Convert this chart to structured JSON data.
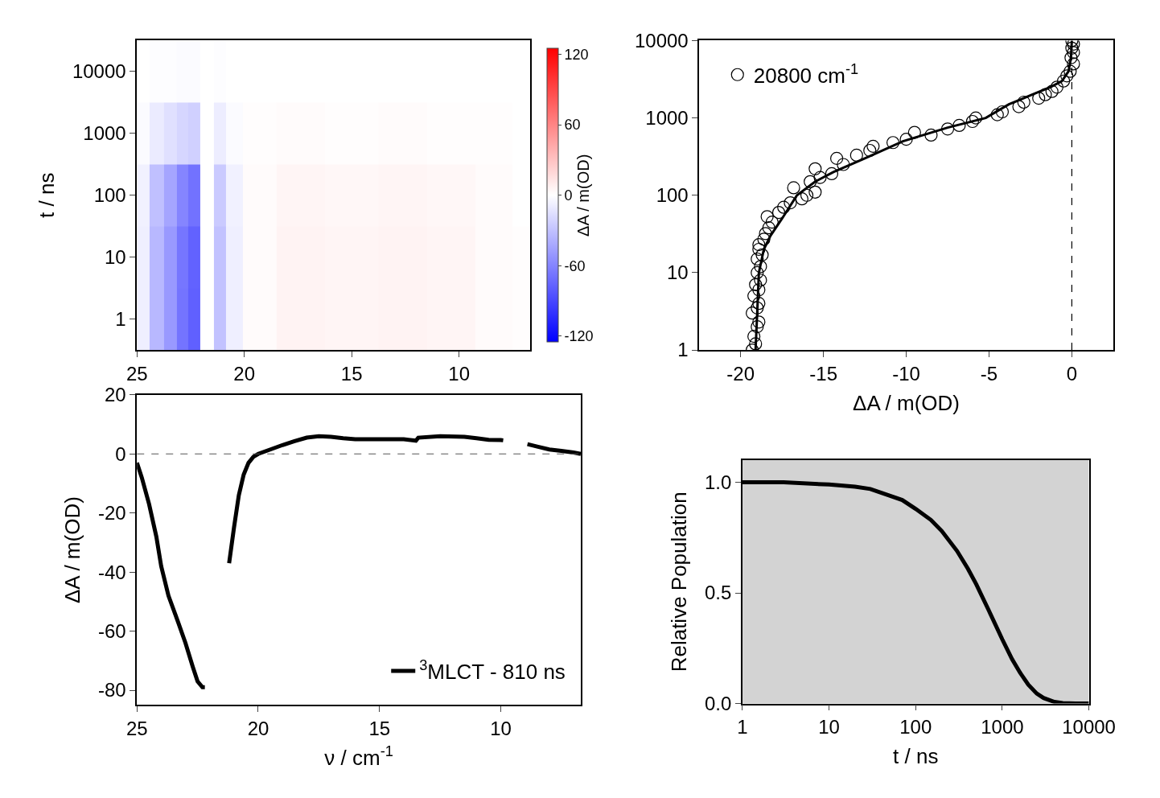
{
  "chart_data": [
    {
      "type": "heatmap",
      "ylabel": "t / ns",
      "clabel": "ΔA / m(OD)",
      "x": [
        24.8,
        24.0,
        23.5,
        22.8,
        22.4,
        21.7,
        21.1,
        20.6,
        19.5,
        17.5,
        15,
        12.5,
        10.5,
        8,
        7
      ],
      "y_categories": [
        "10000",
        "1000",
        "100",
        "10",
        "1"
      ],
      "cells": [
        [
          0,
          -1,
          -1,
          -2,
          -2,
          null,
          -1,
          0,
          0,
          0,
          0,
          0,
          0,
          0,
          0
        ],
        [
          -2,
          -10,
          -15,
          -20,
          -23,
          null,
          -9,
          -2,
          1,
          2,
          1,
          2,
          1,
          1,
          0
        ],
        [
          -7,
          -31,
          -44,
          -60,
          -69,
          null,
          -26,
          -7,
          2,
          5,
          4,
          5,
          4,
          2,
          0
        ],
        [
          -8,
          -35,
          -50,
          -67,
          -77,
          null,
          -30,
          -8,
          2,
          6,
          5,
          6,
          5,
          2,
          1
        ],
        [
          -8,
          -35,
          -50,
          -68,
          -78,
          null,
          -30,
          -8,
          2,
          6,
          5,
          6,
          5,
          2,
          1
        ]
      ],
      "colors": [
        "#0000ff",
        "#ffffff",
        "#ff0000"
      ],
      "xlim": [
        25,
        6.7
      ],
      "xticks": [
        25,
        20,
        15,
        10
      ],
      "clim": [
        -125,
        125
      ],
      "cticks": [
        -120,
        -60,
        0,
        60,
        120
      ]
    },
    {
      "type": "scatter",
      "xlabel": "ΔA / m(OD)",
      "log": "y",
      "legend": "top left",
      "series": [
        {
          "name": "20800 cm$^{-1}$",
          "color": "#000000",
          "marker": "circle",
          "x": [
            -19.3,
            -19.1,
            -19.2,
            -19.0,
            -18.9,
            -19.3,
            -19.0,
            -18.9,
            -19.2,
            -18.9,
            -19.1,
            -18.8,
            -19.0,
            -18.8,
            -19.0,
            -18.7,
            -18.9,
            -18.9,
            -18.6,
            -18.5,
            -18.3,
            -18.1,
            -18.4,
            -17.7,
            -17.4,
            -17.0,
            -16.3,
            -16.0,
            -15.5,
            -16.8,
            -15.8,
            -15.2,
            -14.5,
            -15.5,
            -13.8,
            -14.2,
            -13.0,
            -12.2,
            -12.0,
            -10.8,
            -10.0,
            -8.5,
            -9.5,
            -7.5,
            -6.8,
            -6.0,
            -5.8,
            -4.5,
            -4.2,
            -3.2,
            -2.9,
            -2.0,
            -1.6,
            -1.2,
            -0.9,
            -0.5,
            -0.3,
            -0.1,
            0.1,
            -0.05,
            0.1,
            0,
            0.1,
            0
          ],
          "values": [
            1,
            1.2,
            1.5,
            2,
            2.3,
            3,
            3.5,
            4,
            5,
            6,
            7,
            8,
            10,
            12,
            15,
            17,
            20,
            23,
            27,
            32,
            38,
            45,
            53,
            60,
            70,
            80,
            90,
            100,
            110,
            125,
            150,
            170,
            190,
            220,
            250,
            300,
            330,
            380,
            430,
            480,
            530,
            600,
            650,
            720,
            800,
            900,
            1000,
            1100,
            1200,
            1400,
            1600,
            1800,
            2000,
            2200,
            2500,
            3000,
            3500,
            4000,
            5000,
            6000,
            7000,
            8000,
            9000,
            10000
          ]
        },
        {
          "type": "line",
          "color": "#000000",
          "x": [
            -19.1,
            -19.0,
            -18.9,
            -18.6,
            -18.2,
            -17.5,
            -16.6,
            -15.5,
            -14.4,
            -12.5,
            -10.2,
            -7.5,
            -5.2,
            -3.8,
            -2.4,
            -1.3,
            -0.6,
            -0.2,
            -0.05,
            0
          ],
          "values": [
            1,
            3,
            10,
            20,
            30,
            50,
            100,
            150,
            200,
            300,
            500,
            750,
            1000,
            1500,
            2000,
            2500,
            3000,
            4000,
            6000,
            10000
          ]
        }
      ],
      "ref_lines": [
        {
          "axis": "x",
          "value": 0,
          "color": "#000000",
          "line_style": "dashed"
        }
      ],
      "xlim": [
        -22.5,
        2.5
      ],
      "xticks": [
        -20,
        -15,
        -10,
        -5,
        0
      ],
      "ylim": [
        1,
        10000
      ],
      "yticks": [
        1,
        10,
        100,
        1000,
        10000
      ]
    },
    {
      "type": "line",
      "xlabel": "ν / cm$^{-1}$",
      "ylabel": "ΔA / m(OD)",
      "legend": "bottom right",
      "x": [
        25,
        24.8,
        24.5,
        24.2,
        24.0,
        23.7,
        23.3,
        23.0,
        22.7,
        22.5,
        22.3,
        22.2,
        21.7,
        21.2,
        21.0,
        20.8,
        20.6,
        20.4,
        20.2,
        20.0,
        19.5,
        19.0,
        18.5,
        18.0,
        17.5,
        17.0,
        16.5,
        16.0,
        15.0,
        14.0,
        13.5,
        13.4,
        12.5,
        11.5,
        11.0,
        10.5,
        10.0,
        9.9,
        9.4,
        8.9,
        8.5,
        8.0,
        7.5,
        7.0,
        6.7
      ],
      "series": [
        {
          "name": "$^{3}$MLCT - 810 ns",
          "color": "#000000",
          "values": [
            -3,
            -8,
            -17,
            -28,
            -38,
            -48,
            -57,
            -64,
            -72,
            -77,
            -79,
            -79,
            null,
            -37,
            -25,
            -14,
            -7,
            -3,
            -1,
            0,
            1.5,
            3,
            4.3,
            5.5,
            6,
            5.8,
            5.3,
            5,
            5,
            5,
            4.5,
            5.5,
            6,
            5.8,
            5.3,
            4.8,
            4.7,
            4.6,
            null,
            3.3,
            2.5,
            1.5,
            1,
            0.5,
            0
          ]
        }
      ],
      "ref_lines": [
        {
          "axis": "y",
          "value": 0,
          "color": "#555555",
          "line_style": "dashed"
        }
      ],
      "xlim": [
        25,
        6.7
      ],
      "xticks": [
        25,
        20,
        15,
        10
      ],
      "ylim": [
        -85,
        20
      ],
      "yticks": [
        20,
        0,
        -20,
        -40,
        -60,
        -80
      ]
    },
    {
      "type": "line",
      "xlabel": "t / ns",
      "ylabel": "Relative Population",
      "log": "x",
      "x": [
        1,
        3,
        10,
        20,
        30,
        50,
        70,
        100,
        150,
        200,
        300,
        400,
        500,
        700,
        1000,
        1300,
        1600,
        2000,
        2500,
        3000,
        4000,
        5000,
        7000,
        10000
      ],
      "series": [
        {
          "color": "#000000",
          "values": [
            1.0,
            1.0,
            0.99,
            0.98,
            0.97,
            0.94,
            0.92,
            0.88,
            0.83,
            0.78,
            0.69,
            0.61,
            0.54,
            0.42,
            0.29,
            0.2,
            0.14,
            0.085,
            0.045,
            0.025,
            0.007,
            0.002,
            0,
            0
          ]
        }
      ],
      "bands": [
        {
          "axis": "x",
          "from": 1,
          "to": 10000,
          "color": "#d3d3d3"
        }
      ],
      "xlim": [
        1,
        10000
      ],
      "xticks": [
        1,
        10,
        100,
        1000,
        10000
      ],
      "ylim": [
        0,
        1.1
      ],
      "yticks": [
        {
          "value": 0,
          "label": "0.0"
        },
        {
          "value": 0.5,
          "label": "0.5"
        },
        {
          "value": 1,
          "label": "1.0"
        }
      ]
    }
  ]
}
